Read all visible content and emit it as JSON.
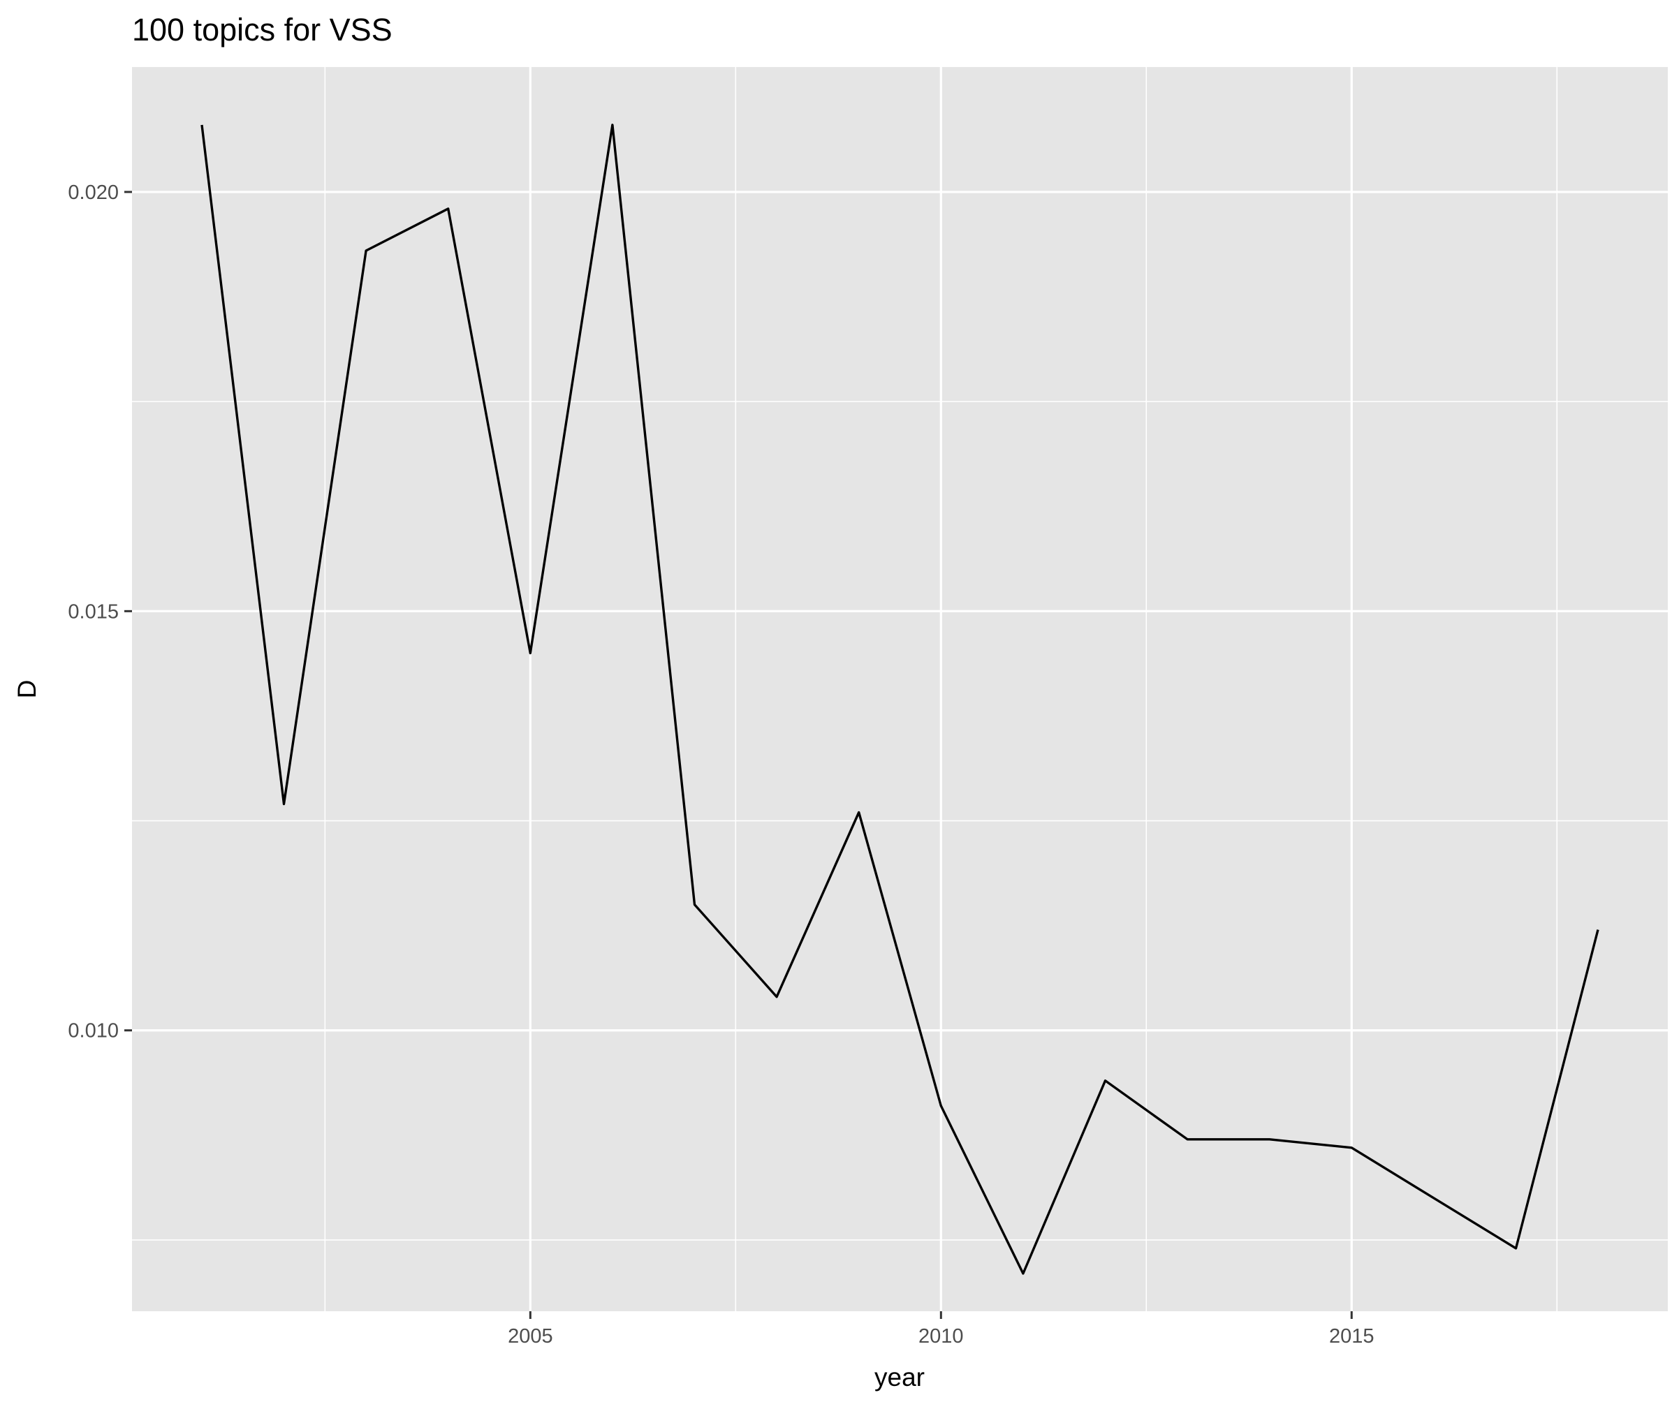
{
  "chart_data": {
    "type": "line",
    "title": "100 topics for VSS",
    "xlabel": "year",
    "ylabel": "D",
    "x": [
      2001,
      2002,
      2003,
      2004,
      2005,
      2006,
      2007,
      2008,
      2009,
      2010,
      2011,
      2012,
      2013,
      2014,
      2015,
      2016,
      2017,
      2018
    ],
    "series": [
      {
        "values": [
          0.0208,
          0.0127,
          0.0193,
          0.0198,
          0.0145,
          0.0208,
          0.0115,
          0.0104,
          0.0126,
          0.0091,
          0.0071,
          0.0094,
          0.0087,
          0.0087,
          0.0086,
          0.008,
          0.0074,
          0.0112
        ],
        "color": "#000000"
      }
    ],
    "xlim": [
      2000.15,
      2018.85
    ],
    "ylim": [
      0.00665,
      0.02149
    ],
    "x_ticks": [
      2005,
      2010,
      2015
    ],
    "x_tick_labels": [
      "2005",
      "2010",
      "2015"
    ],
    "x_minor_ticks": [
      2002.5,
      2007.5,
      2012.5,
      2017.5
    ],
    "y_ticks": [
      0.01,
      0.015,
      0.02
    ],
    "y_tick_labels": [
      "0.010",
      "0.015",
      "0.020"
    ],
    "y_minor_ticks": [
      0.0075,
      0.0125,
      0.0175
    ],
    "grid": true,
    "legend": "none",
    "panel_background": "#e5e5e5",
    "grid_color": "#ffffff",
    "text_color": "#000000",
    "tick_label_color": "#4d4d4d"
  }
}
